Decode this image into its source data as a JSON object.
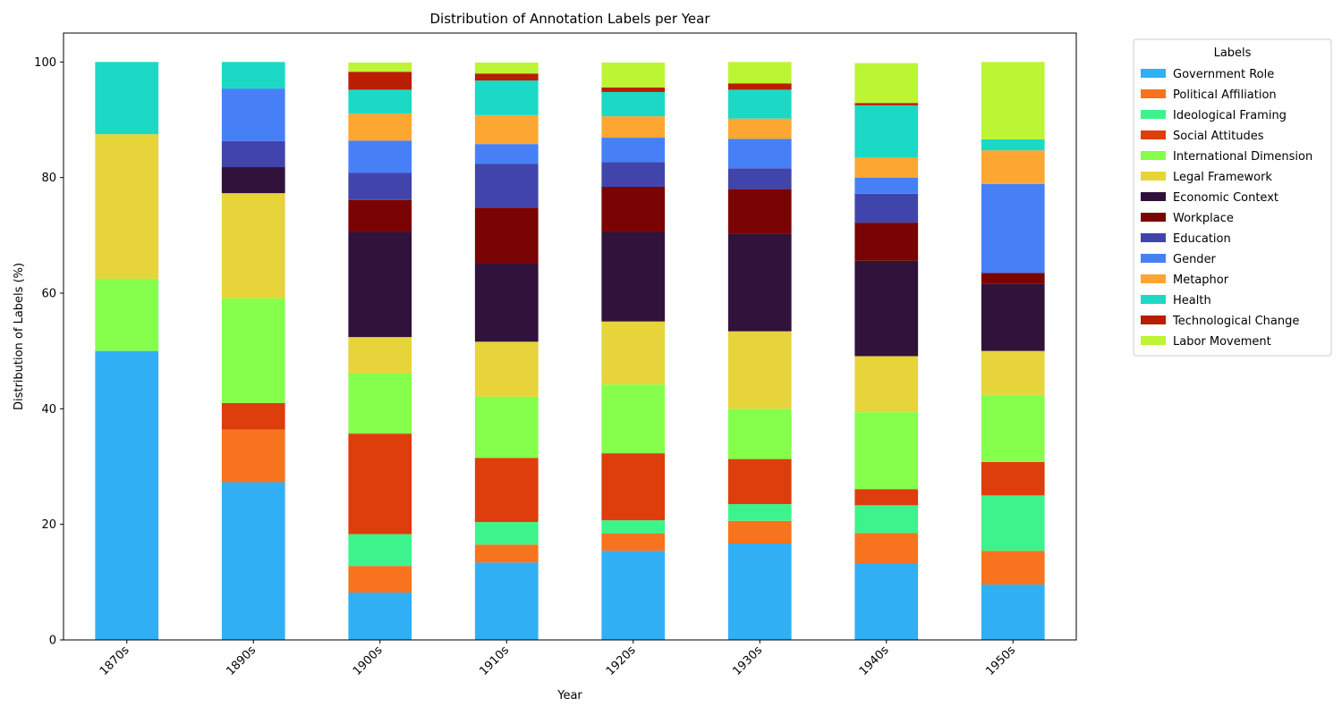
{
  "chart_data": {
    "type": "bar",
    "stacked": true,
    "title": "Distribution of Annotation Labels per Year",
    "xlabel": "Year",
    "ylabel": "Distribution of Labels (%)",
    "ylim": [
      0,
      105
    ],
    "yticks": [
      0,
      20,
      40,
      60,
      80,
      100
    ],
    "categories": [
      "1870s",
      "1890s",
      "1900s",
      "1910s",
      "1920s",
      "1930s",
      "1940s",
      "1950s"
    ],
    "legend_title": "Labels",
    "legend_position": "outside-top-right",
    "grid": false,
    "series": [
      {
        "name": "Government Role",
        "color": "#31aff5",
        "values": [
          50.0,
          27.3,
          8.2,
          13.4,
          15.4,
          16.7,
          13.3,
          9.6
        ]
      },
      {
        "name": "Political Affiliation",
        "color": "#f8731d",
        "values": [
          0,
          9.1,
          4.6,
          3.1,
          3.0,
          3.9,
          5.2,
          5.8
        ]
      },
      {
        "name": "Ideological Framing",
        "color": "#3df48c",
        "values": [
          0,
          0,
          5.5,
          3.9,
          2.3,
          2.9,
          4.8,
          9.6
        ]
      },
      {
        "name": "Social Attitudes",
        "color": "#dd3e0c",
        "values": [
          0,
          4.6,
          17.4,
          11.1,
          11.6,
          7.8,
          2.8,
          5.8
        ]
      },
      {
        "name": "International Dimension",
        "color": "#85ff4b",
        "values": [
          12.5,
          18.1,
          10.4,
          10.6,
          11.9,
          8.7,
          13.3,
          11.6
        ]
      },
      {
        "name": "Legal Framework",
        "color": "#e6d43a",
        "values": [
          25.0,
          18.2,
          6.3,
          9.5,
          10.9,
          13.4,
          9.7,
          7.6
        ]
      },
      {
        "name": "Economic Context",
        "color": "#30123b",
        "values": [
          0,
          4.5,
          18.2,
          13.5,
          15.5,
          16.9,
          16.5,
          11.6
        ]
      },
      {
        "name": "Workplace",
        "color": "#7a0403",
        "values": [
          0,
          0,
          5.5,
          9.7,
          7.8,
          7.7,
          6.6,
          1.9
        ]
      },
      {
        "name": "Education",
        "color": "#4145ab",
        "values": [
          0,
          4.5,
          4.7,
          7.6,
          4.3,
          3.6,
          5.0,
          0
        ]
      },
      {
        "name": "Gender",
        "color": "#4780f6",
        "values": [
          0,
          9.1,
          5.6,
          3.4,
          4.2,
          5.1,
          2.8,
          15.4
        ]
      },
      {
        "name": "Metaphor",
        "color": "#fea632",
        "values": [
          0,
          0,
          4.7,
          5.0,
          3.7,
          3.5,
          3.5,
          5.8
        ]
      },
      {
        "name": "Health",
        "color": "#1bd9c5",
        "values": [
          12.5,
          4.6,
          4.1,
          6.0,
          4.2,
          5.0,
          9.0,
          1.9
        ]
      },
      {
        "name": "Technological Change",
        "color": "#b91e03",
        "values": [
          0,
          0,
          3.1,
          1.2,
          0.8,
          1.1,
          0.4,
          0
        ]
      },
      {
        "name": "Labor Movement",
        "color": "#bcf534",
        "values": [
          0,
          0,
          1.6,
          1.9,
          4.3,
          3.7,
          6.9,
          13.4
        ]
      }
    ]
  }
}
